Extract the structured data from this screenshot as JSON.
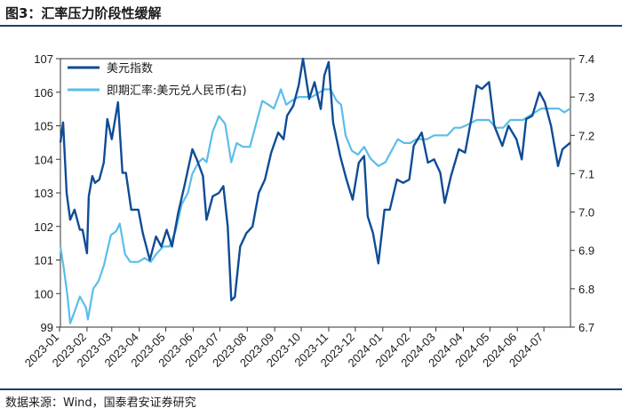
{
  "figure_label": "图3：汇率压力阶段性缓解",
  "source_note": "数据来源：Wind，国泰君安证券研究",
  "colors": {
    "dxy": "#0f4c96",
    "cny": "#5bbde9",
    "rule": "#1f3f6e"
  },
  "chart_data": {
    "type": "line",
    "title": "图3：汇率压力阶段性缓解",
    "xlabel": "",
    "ylabel_left": "",
    "ylabel_right": "",
    "x_tick_labels": [
      "2023-01",
      "2023-02",
      "2023-03",
      "2023-04",
      "2023-05",
      "2023-06",
      "2023-07",
      "2023-08",
      "2023-09",
      "2023-10",
      "2023-11",
      "2023-12",
      "2024-01",
      "2024-02",
      "2024-03",
      "2024-04",
      "2024-05",
      "2024-06",
      "2024-07"
    ],
    "x_range": [
      "2023-01-02",
      "2024-07-31"
    ],
    "left_axis": {
      "min": 99,
      "max": 107,
      "ticks": [
        99,
        100,
        101,
        102,
        103,
        104,
        105,
        106,
        107
      ]
    },
    "right_axis": {
      "min": 6.7,
      "max": 7.4,
      "ticks": [
        6.7,
        6.8,
        6.9,
        7.0,
        7.1,
        7.2,
        7.3,
        7.4
      ]
    },
    "legend_position": "top-left",
    "grid": false,
    "series": [
      {
        "name": "美元指数",
        "axis": "left",
        "points": [
          [
            "2023-01-02",
            104.5
          ],
          [
            "2023-01-05",
            105.1
          ],
          [
            "2023-01-09",
            103.0
          ],
          [
            "2023-01-13",
            102.2
          ],
          [
            "2023-01-18",
            102.5
          ],
          [
            "2023-01-24",
            101.9
          ],
          [
            "2023-01-27",
            101.9
          ],
          [
            "2023-02-01",
            101.2
          ],
          [
            "2023-02-03",
            102.9
          ],
          [
            "2023-02-07",
            103.5
          ],
          [
            "2023-02-10",
            103.3
          ],
          [
            "2023-02-15",
            103.4
          ],
          [
            "2023-02-20",
            103.9
          ],
          [
            "2023-02-24",
            105.2
          ],
          [
            "2023-03-01",
            104.6
          ],
          [
            "2023-03-08",
            105.7
          ],
          [
            "2023-03-13",
            103.6
          ],
          [
            "2023-03-17",
            103.6
          ],
          [
            "2023-03-23",
            102.5
          ],
          [
            "2023-03-31",
            102.5
          ],
          [
            "2023-04-05",
            101.8
          ],
          [
            "2023-04-13",
            101.0
          ],
          [
            "2023-04-20",
            101.7
          ],
          [
            "2023-04-26",
            101.4
          ],
          [
            "2023-05-02",
            101.9
          ],
          [
            "2023-05-08",
            101.4
          ],
          [
            "2023-05-15",
            102.4
          ],
          [
            "2023-05-22",
            103.2
          ],
          [
            "2023-05-31",
            104.3
          ],
          [
            "2023-06-05",
            104.0
          ],
          [
            "2023-06-12",
            103.5
          ],
          [
            "2023-06-16",
            102.2
          ],
          [
            "2023-06-23",
            102.9
          ],
          [
            "2023-06-30",
            103.0
          ],
          [
            "2023-07-05",
            103.2
          ],
          [
            "2023-07-10",
            102.0
          ],
          [
            "2023-07-14",
            99.8
          ],
          [
            "2023-07-18",
            99.9
          ],
          [
            "2023-07-24",
            101.4
          ],
          [
            "2023-07-31",
            101.8
          ],
          [
            "2023-08-07",
            102.0
          ],
          [
            "2023-08-14",
            103.0
          ],
          [
            "2023-08-21",
            103.4
          ],
          [
            "2023-08-28",
            104.2
          ],
          [
            "2023-09-05",
            104.8
          ],
          [
            "2023-09-11",
            104.6
          ],
          [
            "2023-09-15",
            105.3
          ],
          [
            "2023-09-22",
            105.6
          ],
          [
            "2023-09-28",
            106.2
          ],
          [
            "2023-10-03",
            107.0
          ],
          [
            "2023-10-10",
            105.8
          ],
          [
            "2023-10-16",
            106.3
          ],
          [
            "2023-10-23",
            105.5
          ],
          [
            "2023-10-27",
            106.5
          ],
          [
            "2023-11-01",
            106.9
          ],
          [
            "2023-11-06",
            105.1
          ],
          [
            "2023-11-14",
            104.1
          ],
          [
            "2023-11-21",
            103.4
          ],
          [
            "2023-11-28",
            102.8
          ],
          [
            "2023-12-05",
            103.9
          ],
          [
            "2023-12-11",
            104.1
          ],
          [
            "2023-12-15",
            102.3
          ],
          [
            "2023-12-21",
            101.8
          ],
          [
            "2023-12-27",
            100.9
          ],
          [
            "2024-01-03",
            102.5
          ],
          [
            "2024-01-09",
            102.5
          ],
          [
            "2024-01-17",
            103.4
          ],
          [
            "2024-01-24",
            103.3
          ],
          [
            "2024-01-31",
            103.4
          ],
          [
            "2024-02-05",
            104.4
          ],
          [
            "2024-02-14",
            104.8
          ],
          [
            "2024-02-21",
            103.9
          ],
          [
            "2024-02-28",
            104.0
          ],
          [
            "2024-03-06",
            103.6
          ],
          [
            "2024-03-11",
            102.7
          ],
          [
            "2024-03-18",
            103.5
          ],
          [
            "2024-03-27",
            104.3
          ],
          [
            "2024-04-03",
            104.2
          ],
          [
            "2024-04-10",
            105.2
          ],
          [
            "2024-04-16",
            106.2
          ],
          [
            "2024-04-22",
            106.1
          ],
          [
            "2024-04-30",
            106.3
          ],
          [
            "2024-05-06",
            105.0
          ],
          [
            "2024-05-15",
            104.4
          ],
          [
            "2024-05-22",
            105.0
          ],
          [
            "2024-05-31",
            104.6
          ],
          [
            "2024-06-06",
            104.0
          ],
          [
            "2024-06-11",
            105.2
          ],
          [
            "2024-06-18",
            105.3
          ],
          [
            "2024-06-26",
            106.0
          ],
          [
            "2024-07-02",
            105.7
          ],
          [
            "2024-07-09",
            105.0
          ],
          [
            "2024-07-17",
            103.8
          ],
          [
            "2024-07-22",
            104.3
          ],
          [
            "2024-07-31",
            104.5
          ]
        ]
      },
      {
        "name": "即期汇率:美元兑人民币(右)",
        "axis": "right",
        "points": [
          [
            "2023-01-02",
            6.91
          ],
          [
            "2023-01-06",
            6.85
          ],
          [
            "2023-01-10",
            6.78
          ],
          [
            "2023-01-13",
            6.71
          ],
          [
            "2023-01-18",
            6.74
          ],
          [
            "2023-01-24",
            6.78
          ],
          [
            "2023-01-31",
            6.75
          ],
          [
            "2023-02-02",
            6.72
          ],
          [
            "2023-02-08",
            6.8
          ],
          [
            "2023-02-14",
            6.82
          ],
          [
            "2023-02-20",
            6.86
          ],
          [
            "2023-02-28",
            6.94
          ],
          [
            "2023-03-06",
            6.95
          ],
          [
            "2023-03-10",
            6.97
          ],
          [
            "2023-03-16",
            6.89
          ],
          [
            "2023-03-22",
            6.87
          ],
          [
            "2023-03-31",
            6.87
          ],
          [
            "2023-04-07",
            6.88
          ],
          [
            "2023-04-14",
            6.87
          ],
          [
            "2023-04-20",
            6.89
          ],
          [
            "2023-04-28",
            6.91
          ],
          [
            "2023-05-05",
            6.91
          ],
          [
            "2023-05-12",
            6.95
          ],
          [
            "2023-05-19",
            7.02
          ],
          [
            "2023-05-26",
            7.05
          ],
          [
            "2023-05-31",
            7.1
          ],
          [
            "2023-06-07",
            7.13
          ],
          [
            "2023-06-12",
            7.14
          ],
          [
            "2023-06-16",
            7.13
          ],
          [
            "2023-06-23",
            7.21
          ],
          [
            "2023-06-30",
            7.25
          ],
          [
            "2023-07-07",
            7.23
          ],
          [
            "2023-07-14",
            7.13
          ],
          [
            "2023-07-20",
            7.18
          ],
          [
            "2023-07-27",
            7.17
          ],
          [
            "2023-08-04",
            7.17
          ],
          [
            "2023-08-11",
            7.23
          ],
          [
            "2023-08-18",
            7.29
          ],
          [
            "2023-08-25",
            7.28
          ],
          [
            "2023-08-31",
            7.27
          ],
          [
            "2023-09-05",
            7.3
          ],
          [
            "2023-09-08",
            7.32
          ],
          [
            "2023-09-14",
            7.28
          ],
          [
            "2023-09-20",
            7.29
          ],
          [
            "2023-09-28",
            7.3
          ],
          [
            "2023-10-06",
            7.3
          ],
          [
            "2023-10-13",
            7.3
          ],
          [
            "2023-10-20",
            7.31
          ],
          [
            "2023-10-27",
            7.32
          ],
          [
            "2023-11-03",
            7.32
          ],
          [
            "2023-11-10",
            7.29
          ],
          [
            "2023-11-15",
            7.28
          ],
          [
            "2023-11-20",
            7.2
          ],
          [
            "2023-11-27",
            7.16
          ],
          [
            "2023-12-04",
            7.15
          ],
          [
            "2023-12-11",
            7.17
          ],
          [
            "2023-12-18",
            7.14
          ],
          [
            "2023-12-27",
            7.12
          ],
          [
            "2024-01-04",
            7.13
          ],
          [
            "2024-01-11",
            7.16
          ],
          [
            "2024-01-18",
            7.19
          ],
          [
            "2024-01-25",
            7.18
          ],
          [
            "2024-02-01",
            7.18
          ],
          [
            "2024-02-08",
            7.19
          ],
          [
            "2024-02-20",
            7.19
          ],
          [
            "2024-02-28",
            7.2
          ],
          [
            "2024-03-06",
            7.2
          ],
          [
            "2024-03-14",
            7.2
          ],
          [
            "2024-03-22",
            7.22
          ],
          [
            "2024-03-29",
            7.22
          ],
          [
            "2024-04-08",
            7.23
          ],
          [
            "2024-04-16",
            7.24
          ],
          [
            "2024-04-24",
            7.24
          ],
          [
            "2024-04-30",
            7.24
          ],
          [
            "2024-05-08",
            7.22
          ],
          [
            "2024-05-16",
            7.22
          ],
          [
            "2024-05-24",
            7.24
          ],
          [
            "2024-05-31",
            7.24
          ],
          [
            "2024-06-07",
            7.24
          ],
          [
            "2024-06-14",
            7.25
          ],
          [
            "2024-06-21",
            7.26
          ],
          [
            "2024-06-28",
            7.27
          ],
          [
            "2024-07-05",
            7.27
          ],
          [
            "2024-07-12",
            7.27
          ],
          [
            "2024-07-18",
            7.27
          ],
          [
            "2024-07-24",
            7.26
          ],
          [
            "2024-07-31",
            7.27
          ]
        ]
      }
    ]
  }
}
